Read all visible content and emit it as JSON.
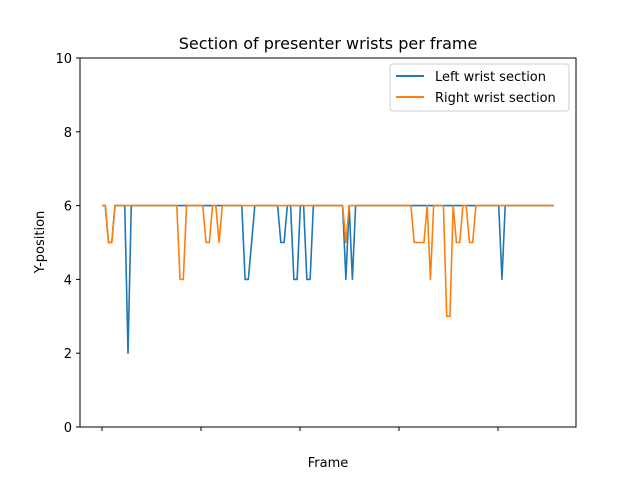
{
  "chart_data": {
    "type": "line",
    "title": "Section of presenter wrists per frame",
    "xlabel": "Frame",
    "ylabel": "Y-position",
    "ylim": [
      0,
      10
    ],
    "yticks": [
      "0",
      "2",
      "4",
      "6",
      "8",
      "10"
    ],
    "x_tick_count": 5,
    "x_tick_labels_visible": false,
    "grid": false,
    "legend_position": "top-right",
    "frame_count": 140,
    "series": [
      {
        "name": "Left wrist section",
        "color": "#1f77b4",
        "values": [
          6,
          6,
          5,
          5,
          6,
          6,
          6,
          6,
          2,
          6,
          6,
          6,
          6,
          6,
          6,
          6,
          6,
          6,
          6,
          6,
          6,
          6,
          6,
          6,
          6,
          6,
          6,
          6,
          6,
          6,
          6,
          6,
          6,
          6,
          6,
          6,
          6,
          6,
          6,
          6,
          6,
          6,
          6,
          6,
          4,
          4,
          5,
          6,
          6,
          6,
          6,
          6,
          6,
          6,
          6,
          5,
          5,
          6,
          6,
          4,
          4,
          6,
          6,
          4,
          4,
          6,
          6,
          6,
          6,
          6,
          6,
          6,
          6,
          6,
          6,
          4,
          6,
          4,
          6,
          6,
          6,
          6,
          6,
          6,
          6,
          6,
          6,
          6,
          6,
          6,
          6,
          6,
          6,
          6,
          6,
          6,
          6,
          6,
          6,
          6,
          6,
          6,
          6,
          6,
          6,
          6,
          6,
          6,
          6,
          6,
          6,
          6,
          6,
          6,
          6,
          6,
          6,
          6,
          6,
          6,
          6,
          6,
          6,
          4,
          6,
          6,
          6,
          6,
          6,
          6,
          6,
          6,
          6,
          6,
          6,
          6,
          6,
          6,
          6,
          6
        ]
      },
      {
        "name": "Right wrist section",
        "color": "#ff7f0e",
        "values": [
          6,
          6,
          5,
          5,
          6,
          6,
          6,
          6,
          6,
          6,
          6,
          6,
          6,
          6,
          6,
          6,
          6,
          6,
          6,
          6,
          6,
          6,
          6,
          6,
          4,
          4,
          6,
          6,
          6,
          6,
          6,
          6,
          5,
          5,
          6,
          6,
          5,
          6,
          6,
          6,
          6,
          6,
          6,
          6,
          6,
          6,
          6,
          6,
          6,
          6,
          6,
          6,
          6,
          6,
          6,
          6,
          6,
          6,
          6,
          6,
          6,
          6,
          6,
          6,
          6,
          6,
          6,
          6,
          6,
          6,
          6,
          6,
          6,
          6,
          6,
          5,
          6,
          6,
          6,
          6,
          6,
          6,
          6,
          6,
          6,
          6,
          6,
          6,
          6,
          6,
          6,
          6,
          6,
          6,
          6,
          6,
          5,
          5,
          5,
          5,
          6,
          4,
          6,
          6,
          6,
          6,
          3,
          3,
          6,
          5,
          5,
          6,
          6,
          5,
          5,
          6,
          6,
          6,
          6,
          6,
          6,
          6,
          6,
          6,
          6,
          6,
          6,
          6,
          6,
          6,
          6,
          6,
          6,
          6,
          6,
          6,
          6,
          6,
          6,
          6
        ]
      }
    ]
  }
}
